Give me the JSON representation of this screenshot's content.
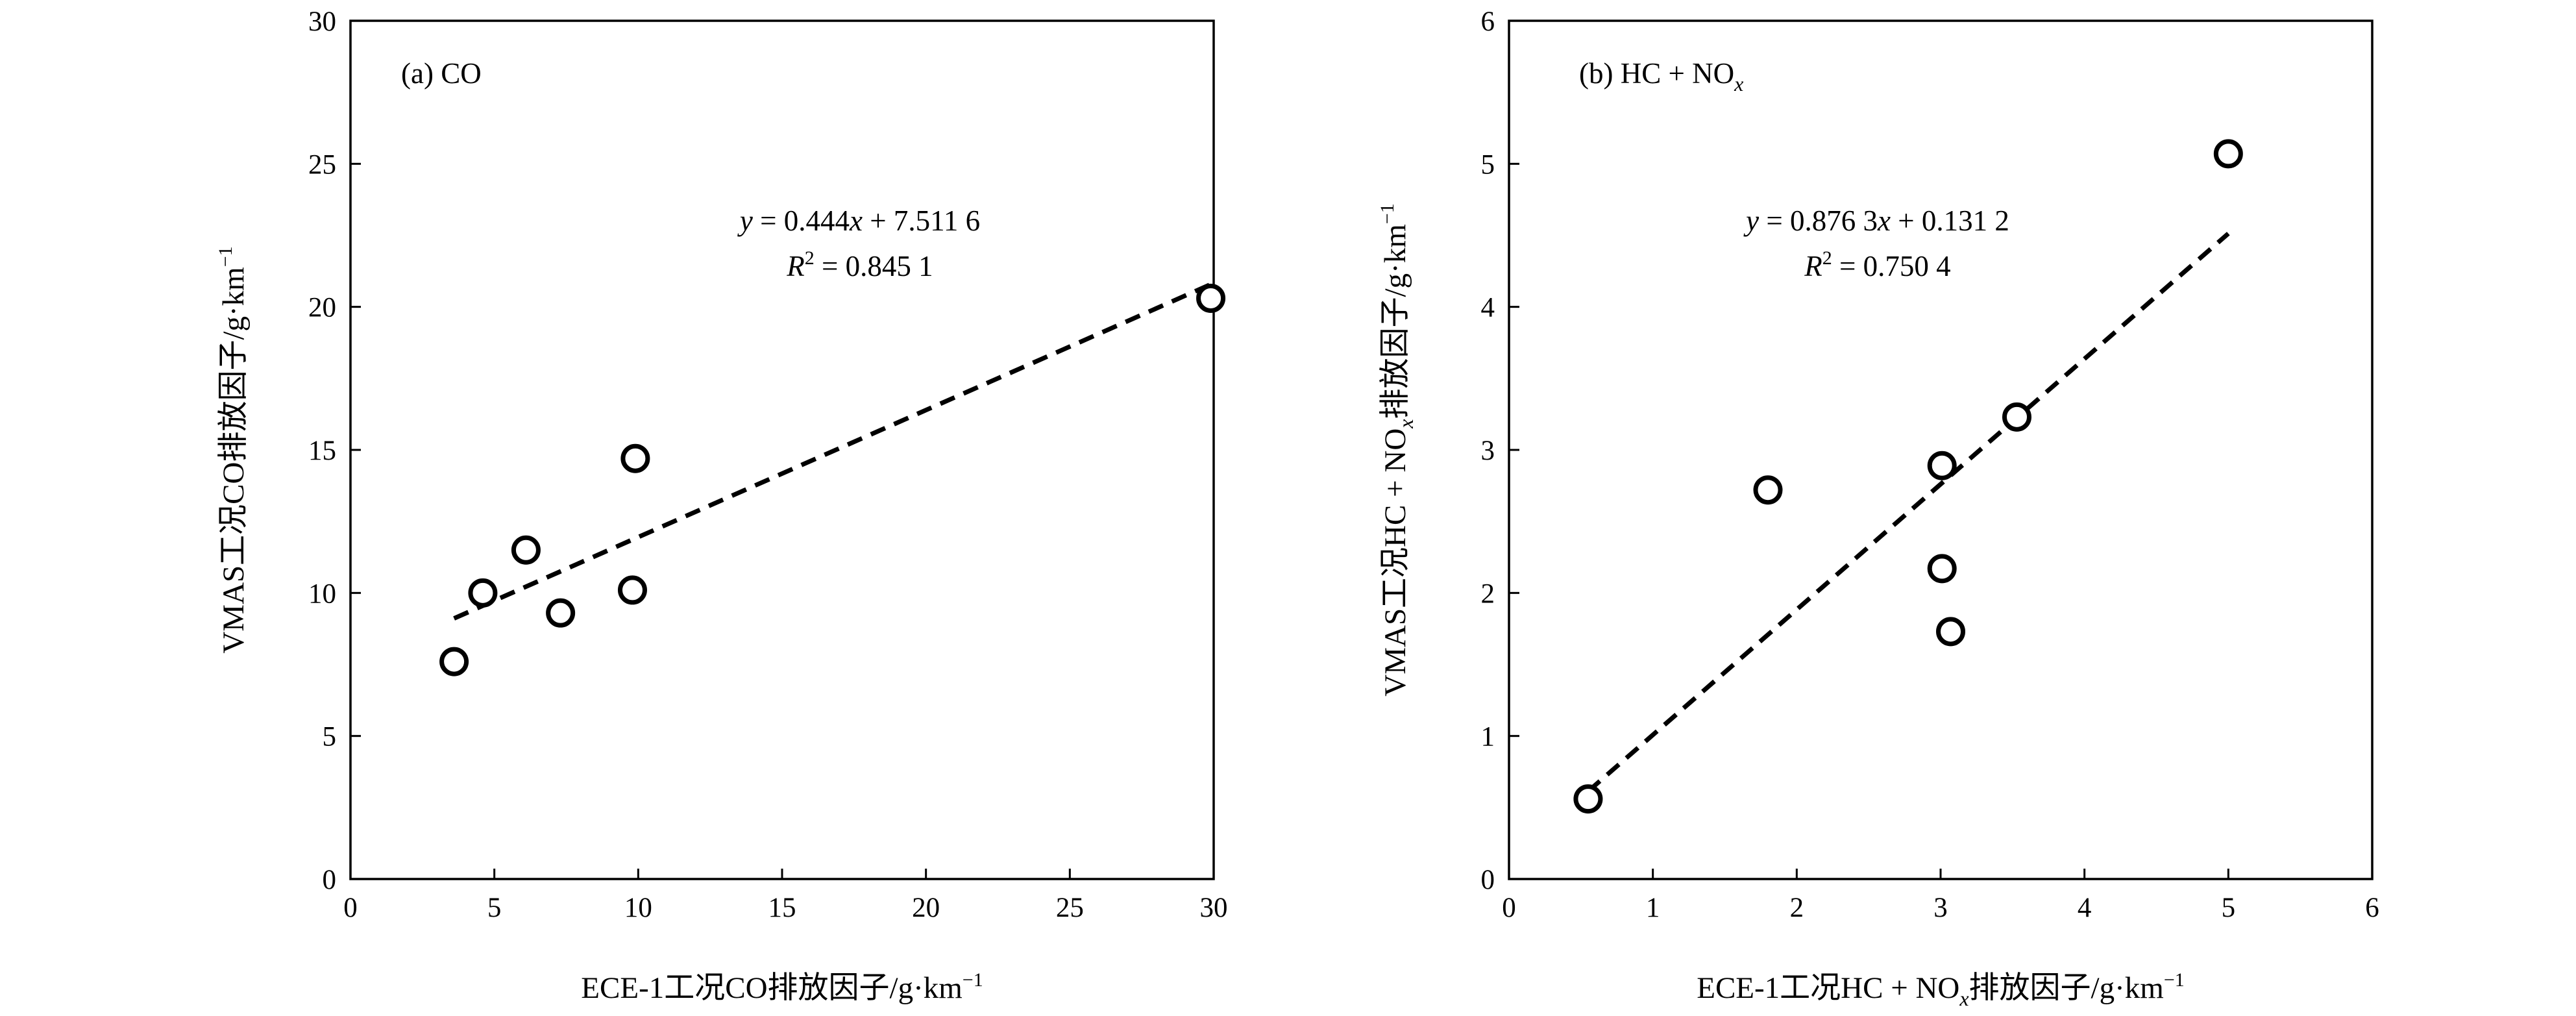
{
  "chart_data": [
    {
      "type": "scatter",
      "panel_label": "(a) CO",
      "xlabel": "ECE-1工况CO排放因子/g·km⁻¹",
      "ylabel": "VMAS工况CO排放因子/g·km⁻¹",
      "xlim": [
        0,
        30
      ],
      "ylim": [
        0,
        30
      ],
      "x_ticks": [
        0,
        5,
        10,
        15,
        20,
        25,
        30
      ],
      "y_ticks": [
        0,
        5,
        10,
        15,
        20,
        25,
        30
      ],
      "grid": false,
      "series": [
        {
          "points": [
            {
              "x": 3.6,
              "y": 7.6
            },
            {
              "x": 4.6,
              "y": 10.0
            },
            {
              "x": 6.1,
              "y": 11.5
            },
            {
              "x": 7.3,
              "y": 9.3
            },
            {
              "x": 9.8,
              "y": 10.1
            },
            {
              "x": 9.9,
              "y": 14.7
            },
            {
              "x": 29.9,
              "y": 20.3
            }
          ]
        }
      ],
      "trendline": {
        "slope": 0.444,
        "intercept": 7.5116,
        "x_range": [
          3.6,
          29.9
        ],
        "equation": "y = 0.444x + 7.511 6",
        "r_squared": "R² = 0.845 1"
      }
    },
    {
      "type": "scatter",
      "panel_label": "(b) HC + NOx",
      "xlabel": "ECE-1工况HC + NOx排放因子/g·km⁻¹",
      "ylabel": "VMAS工况HC + NOx排放因子/g·km⁻¹",
      "xlim": [
        0,
        6
      ],
      "ylim": [
        0,
        6
      ],
      "x_ticks": [
        0,
        1,
        2,
        3,
        4,
        5,
        6
      ],
      "y_ticks": [
        0,
        1,
        2,
        3,
        4,
        5,
        6
      ],
      "grid": false,
      "series": [
        {
          "points": [
            {
              "x": 0.55,
              "y": 0.56
            },
            {
              "x": 1.8,
              "y": 2.72
            },
            {
              "x": 3.01,
              "y": 2.89
            },
            {
              "x": 3.01,
              "y": 2.17
            },
            {
              "x": 3.07,
              "y": 1.73
            },
            {
              "x": 3.53,
              "y": 3.23
            },
            {
              "x": 5.0,
              "y": 5.07
            }
          ]
        }
      ],
      "trendline": {
        "slope": 0.8763,
        "intercept": 0.1312,
        "x_range": [
          0.55,
          5.0
        ],
        "equation": "y = 0.876 3x + 0.131 2",
        "r_squared": "R² = 0.750 4"
      }
    }
  ]
}
